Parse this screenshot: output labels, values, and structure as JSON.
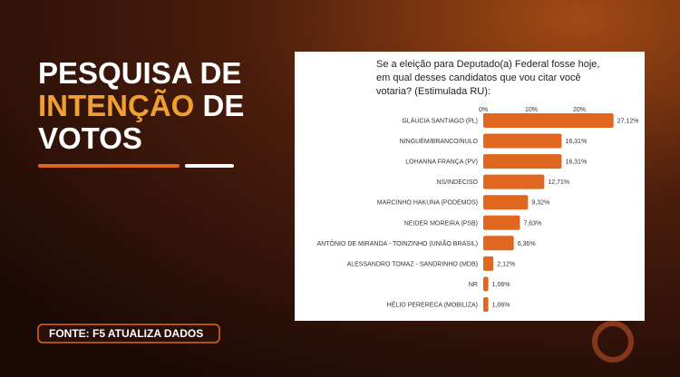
{
  "headline": {
    "line1": "PESQUISA DE",
    "highlight": "INTENÇÃO",
    "line2_rest": "DE",
    "line3": "VOTOS"
  },
  "source": "FONTE: F5 ATUALIZA DADOS",
  "chart_data": {
    "type": "bar",
    "orientation": "horizontal",
    "title": [
      "Se a eleição para Deputado(a) Federal fosse hoje,",
      "em qual desses candidatos que vou citar você",
      "votaria? (Estimulada RU):"
    ],
    "categories": [
      "GLÁUCIA SANTIAGO (PL)",
      "NINGUÉM/BRANCO/NULO",
      "LOHANNA FRANÇA (PV)",
      "NS/INDECISO",
      "MARCINHO HAKUNA (PODEMOS)",
      "NEIDER MOREIRA (PSB)",
      "ANTÔNIO DE MIRANDA - TOINZINHO (UNIÃO BRASIL)",
      "ALESSANDRO TOMAZ - SANDRINHO (MDB)",
      "NR",
      "HÉLIO PERERECA (MOBILIZA)"
    ],
    "values": [
      27.12,
      16.31,
      16.31,
      12.71,
      9.32,
      7.63,
      6.36,
      2.12,
      1.06,
      1.06
    ],
    "value_labels": [
      "27,12%",
      "16,31%",
      "16,31%",
      "12,71%",
      "9,32%",
      "7,63%",
      "6,36%",
      "2,12%",
      "1,06%",
      "1,06%"
    ],
    "color": "#e0671f",
    "xlim": [
      0,
      30
    ],
    "xticks": [
      {
        "value": 0,
        "label": "0%"
      },
      {
        "value": 10,
        "label": "10%"
      },
      {
        "value": 20,
        "label": "20%"
      }
    ]
  }
}
